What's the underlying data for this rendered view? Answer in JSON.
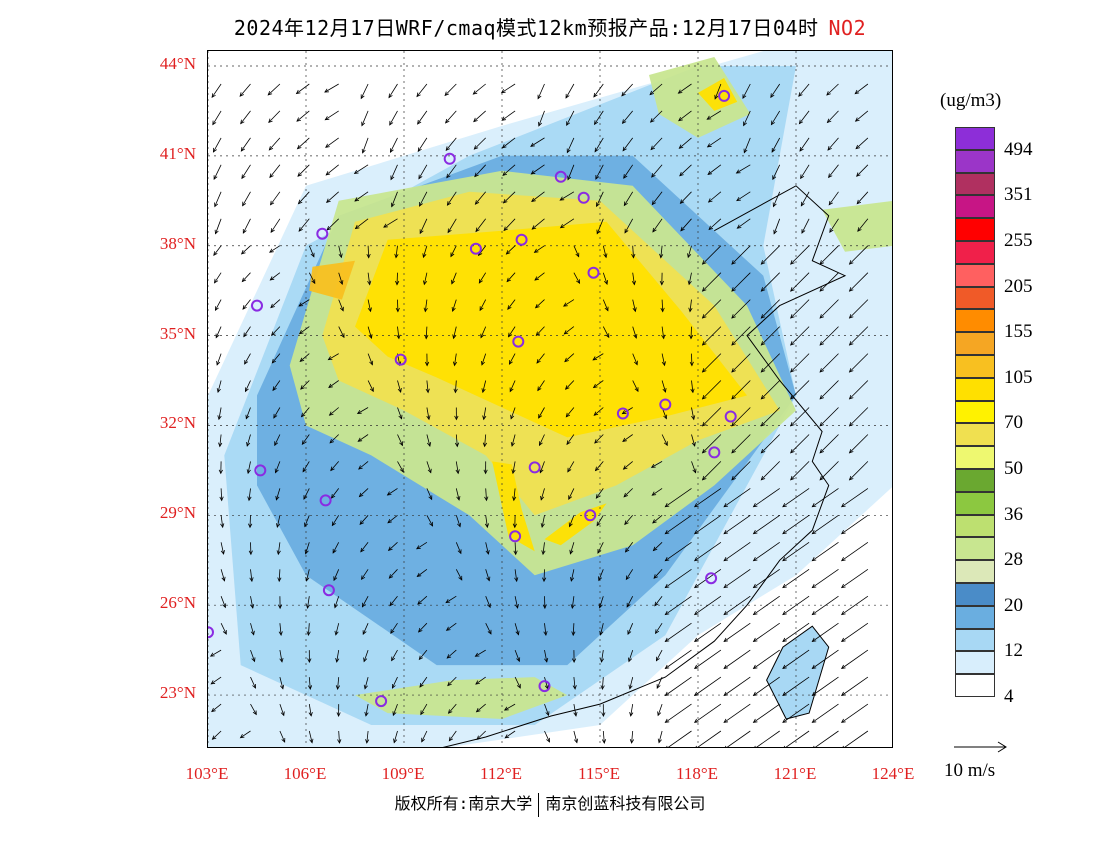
{
  "title": {
    "text": "2024年12月17日WRF/cmaq模式12km预报产品:12月17日04时",
    "pollutant": "NO2"
  },
  "map": {
    "lat_labels": [
      "44°N",
      "41°N",
      "38°N",
      "35°N",
      "32°N",
      "29°N",
      "26°N",
      "23°N"
    ],
    "lon_labels": [
      "103°E",
      "106°E",
      "109°E",
      "112°E",
      "115°E",
      "118°E",
      "121°E",
      "124°E"
    ],
    "extent": {
      "lon_min": 103,
      "lon_max": 124,
      "lat_min": 21.2,
      "lat_max": 44.5
    }
  },
  "legend": {
    "units": "(ug/m3)",
    "labels": [
      "494",
      "351",
      "255",
      "205",
      "155",
      "105",
      "70",
      "50",
      "36",
      "28",
      "20",
      "12",
      "4"
    ],
    "colors": [
      "#8d2ed8",
      "#9b35c8",
      "#b03060",
      "#c71585",
      "#ff0000",
      "#f0204a",
      "#ff6060",
      "#f05a28",
      "#ff8c00",
      "#f5a623",
      "#f8c020",
      "#ffe000",
      "#fff200",
      "#f0e050",
      "#eef870",
      "#6aa830",
      "#8cc840",
      "#bde070",
      "#c8e690",
      "#dce8b8",
      "#4a8cc8",
      "#6aaee0",
      "#a8d8f4",
      "#d8eefc",
      "#ffffff"
    ],
    "wind_reference": "10 m/s"
  },
  "stations": [
    {
      "lon": 118.8,
      "lat": 43.0
    },
    {
      "lon": 110.4,
      "lat": 40.9
    },
    {
      "lon": 113.8,
      "lat": 40.3
    },
    {
      "lon": 114.5,
      "lat": 39.6
    },
    {
      "lon": 106.5,
      "lat": 38.4
    },
    {
      "lon": 111.2,
      "lat": 37.9
    },
    {
      "lon": 112.6,
      "lat": 38.2
    },
    {
      "lon": 114.8,
      "lat": 37.1
    },
    {
      "lon": 104.5,
      "lat": 36.0
    },
    {
      "lon": 112.5,
      "lat": 34.8
    },
    {
      "lon": 108.9,
      "lat": 34.2
    },
    {
      "lon": 117.0,
      "lat": 32.7
    },
    {
      "lon": 115.7,
      "lat": 32.4
    },
    {
      "lon": 119.0,
      "lat": 32.3
    },
    {
      "lon": 118.5,
      "lat": 31.1
    },
    {
      "lon": 113.0,
      "lat": 30.6
    },
    {
      "lon": 104.6,
      "lat": 30.5
    },
    {
      "lon": 106.6,
      "lat": 29.5
    },
    {
      "lon": 114.7,
      "lat": 29.0
    },
    {
      "lon": 112.4,
      "lat": 28.3
    },
    {
      "lon": 118.4,
      "lat": 26.9
    },
    {
      "lon": 106.7,
      "lat": 26.5
    },
    {
      "lon": 103.0,
      "lat": 25.1
    },
    {
      "lon": 113.3,
      "lat": 23.3
    },
    {
      "lon": 108.3,
      "lat": 22.8
    }
  ],
  "copyright": {
    "left": "版权所有:南京大学",
    "right": "南京创蓝科技有限公司"
  }
}
